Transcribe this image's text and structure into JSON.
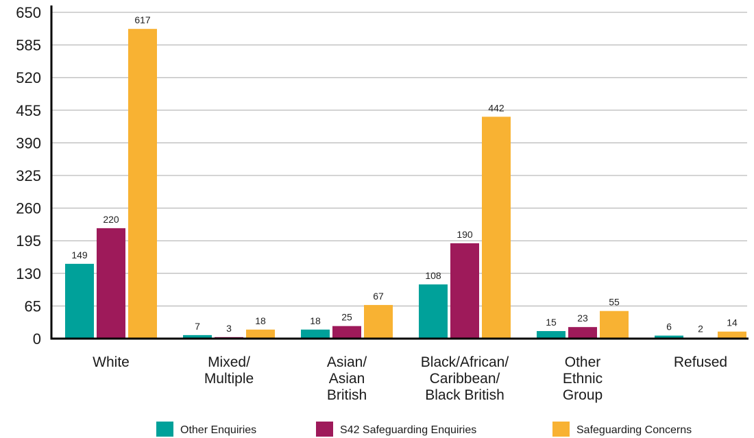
{
  "chart_data": {
    "type": "bar",
    "title": "",
    "xlabel": "",
    "ylabel": "",
    "ylim": [
      0,
      650
    ],
    "yticks": [
      0,
      65,
      130,
      195,
      260,
      325,
      390,
      455,
      520,
      585,
      650
    ],
    "grid": true,
    "legend_position": "bottom",
    "categories": [
      [
        "White"
      ],
      [
        "Mixed/",
        "Multiple"
      ],
      [
        "Asian/",
        "Asian",
        "British"
      ],
      [
        "Black/African/",
        "Caribbean/",
        "Black British"
      ],
      [
        "Other",
        "Ethnic",
        "Group"
      ],
      [
        "Refused"
      ]
    ],
    "series": [
      {
        "name": "Other Enquiries",
        "color": "#00a19a",
        "values": [
          149,
          7,
          18,
          108,
          15,
          6
        ]
      },
      {
        "name": "S42 Safeguarding Enquiries",
        "color": "#9e1a5a",
        "values": [
          220,
          3,
          25,
          190,
          23,
          2
        ]
      },
      {
        "name": "Safeguarding Concerns",
        "color": "#f8b233",
        "values": [
          617,
          18,
          67,
          442,
          55,
          14
        ]
      }
    ]
  }
}
